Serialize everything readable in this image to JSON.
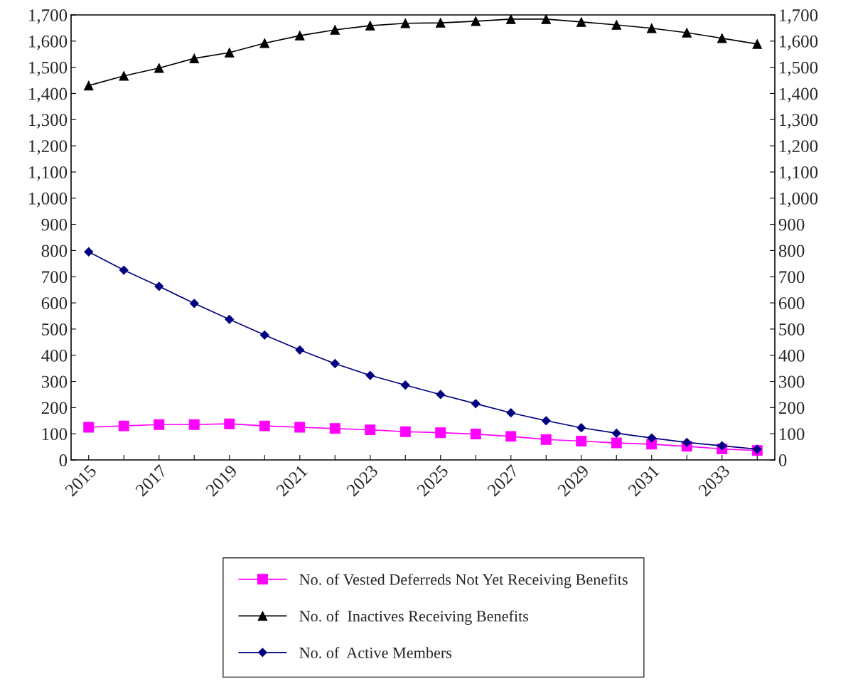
{
  "chart_data": {
    "type": "line",
    "categories": [
      "2015",
      null,
      "2017",
      null,
      "2019",
      null,
      "2021",
      null,
      "2023",
      null,
      "2025",
      null,
      "2027",
      null,
      "2029",
      null,
      "2031",
      null,
      "2033",
      null
    ],
    "series": [
      {
        "name": "No. of Vested Deferreds Not Yet Receiving Benefits",
        "color": "#ff00ff",
        "marker": "square",
        "values": [
          125,
          130,
          135,
          135,
          138,
          130,
          125,
          120,
          115,
          108,
          104,
          99,
          90,
          78,
          72,
          65,
          60,
          52,
          42,
          36
        ]
      },
      {
        "name": "No. of  Inactives Receiving Benefits",
        "color": "#000000",
        "marker": "triangle",
        "values": [
          1430,
          1467,
          1497,
          1534,
          1556,
          1592,
          1621,
          1643,
          1659,
          1668,
          1670,
          1676,
          1684,
          1684,
          1673,
          1662,
          1649,
          1632,
          1611,
          1589
        ]
      },
      {
        "name": "No. of  Active Members",
        "color": "#000080",
        "marker": "diamond",
        "values": [
          795,
          725,
          663,
          598,
          537,
          477,
          420,
          368,
          323,
          286,
          250,
          215,
          180,
          150,
          123,
          102,
          84,
          67,
          54,
          41
        ]
      }
    ],
    "ylim": [
      0,
      1700
    ],
    "yticks": [
      {
        "value": 0,
        "label": "0"
      },
      {
        "value": 100,
        "label": "100"
      },
      {
        "value": 200,
        "label": "200"
      },
      {
        "value": 300,
        "label": "300"
      },
      {
        "value": 400,
        "label": "400"
      },
      {
        "value": 500,
        "label": "500"
      },
      {
        "value": 600,
        "label": "600"
      },
      {
        "value": 700,
        "label": "700"
      },
      {
        "value": 800,
        "label": "800"
      },
      {
        "value": 900,
        "label": "900"
      },
      {
        "value": 1000,
        "label": "1,000"
      },
      {
        "value": 1100,
        "label": "1,100"
      },
      {
        "value": 1200,
        "label": "1,200"
      },
      {
        "value": 1300,
        "label": "1,300"
      },
      {
        "value": 1400,
        "label": "1,400"
      },
      {
        "value": 1500,
        "label": "1,500"
      },
      {
        "value": 1600,
        "label": "1,600"
      },
      {
        "value": 1700,
        "label": "1,700"
      }
    ],
    "y2lim": [
      0,
      1700
    ],
    "y2ticks": [
      {
        "value": 0,
        "label": "0"
      },
      {
        "value": 100,
        "label": "100"
      },
      {
        "value": 200,
        "label": "200"
      },
      {
        "value": 300,
        "label": "300"
      },
      {
        "value": 400,
        "label": "400"
      },
      {
        "value": 500,
        "label": "500"
      },
      {
        "value": 600,
        "label": "600"
      },
      {
        "value": 700,
        "label": "700"
      },
      {
        "value": 800,
        "label": "800"
      },
      {
        "value": 900,
        "label": "900"
      },
      {
        "value": 1000,
        "label": "1,000"
      },
      {
        "value": 1100,
        "label": "1,100"
      },
      {
        "value": 1200,
        "label": "1,200"
      },
      {
        "value": 1300,
        "label": "1,300"
      },
      {
        "value": 1400,
        "label": "1,400"
      },
      {
        "value": 1500,
        "label": "1,500"
      },
      {
        "value": 1600,
        "label": "1,600"
      },
      {
        "value": 1700,
        "label": "1,700"
      }
    ],
    "grid": false,
    "legend": "bottom",
    "line_style": "solid"
  }
}
